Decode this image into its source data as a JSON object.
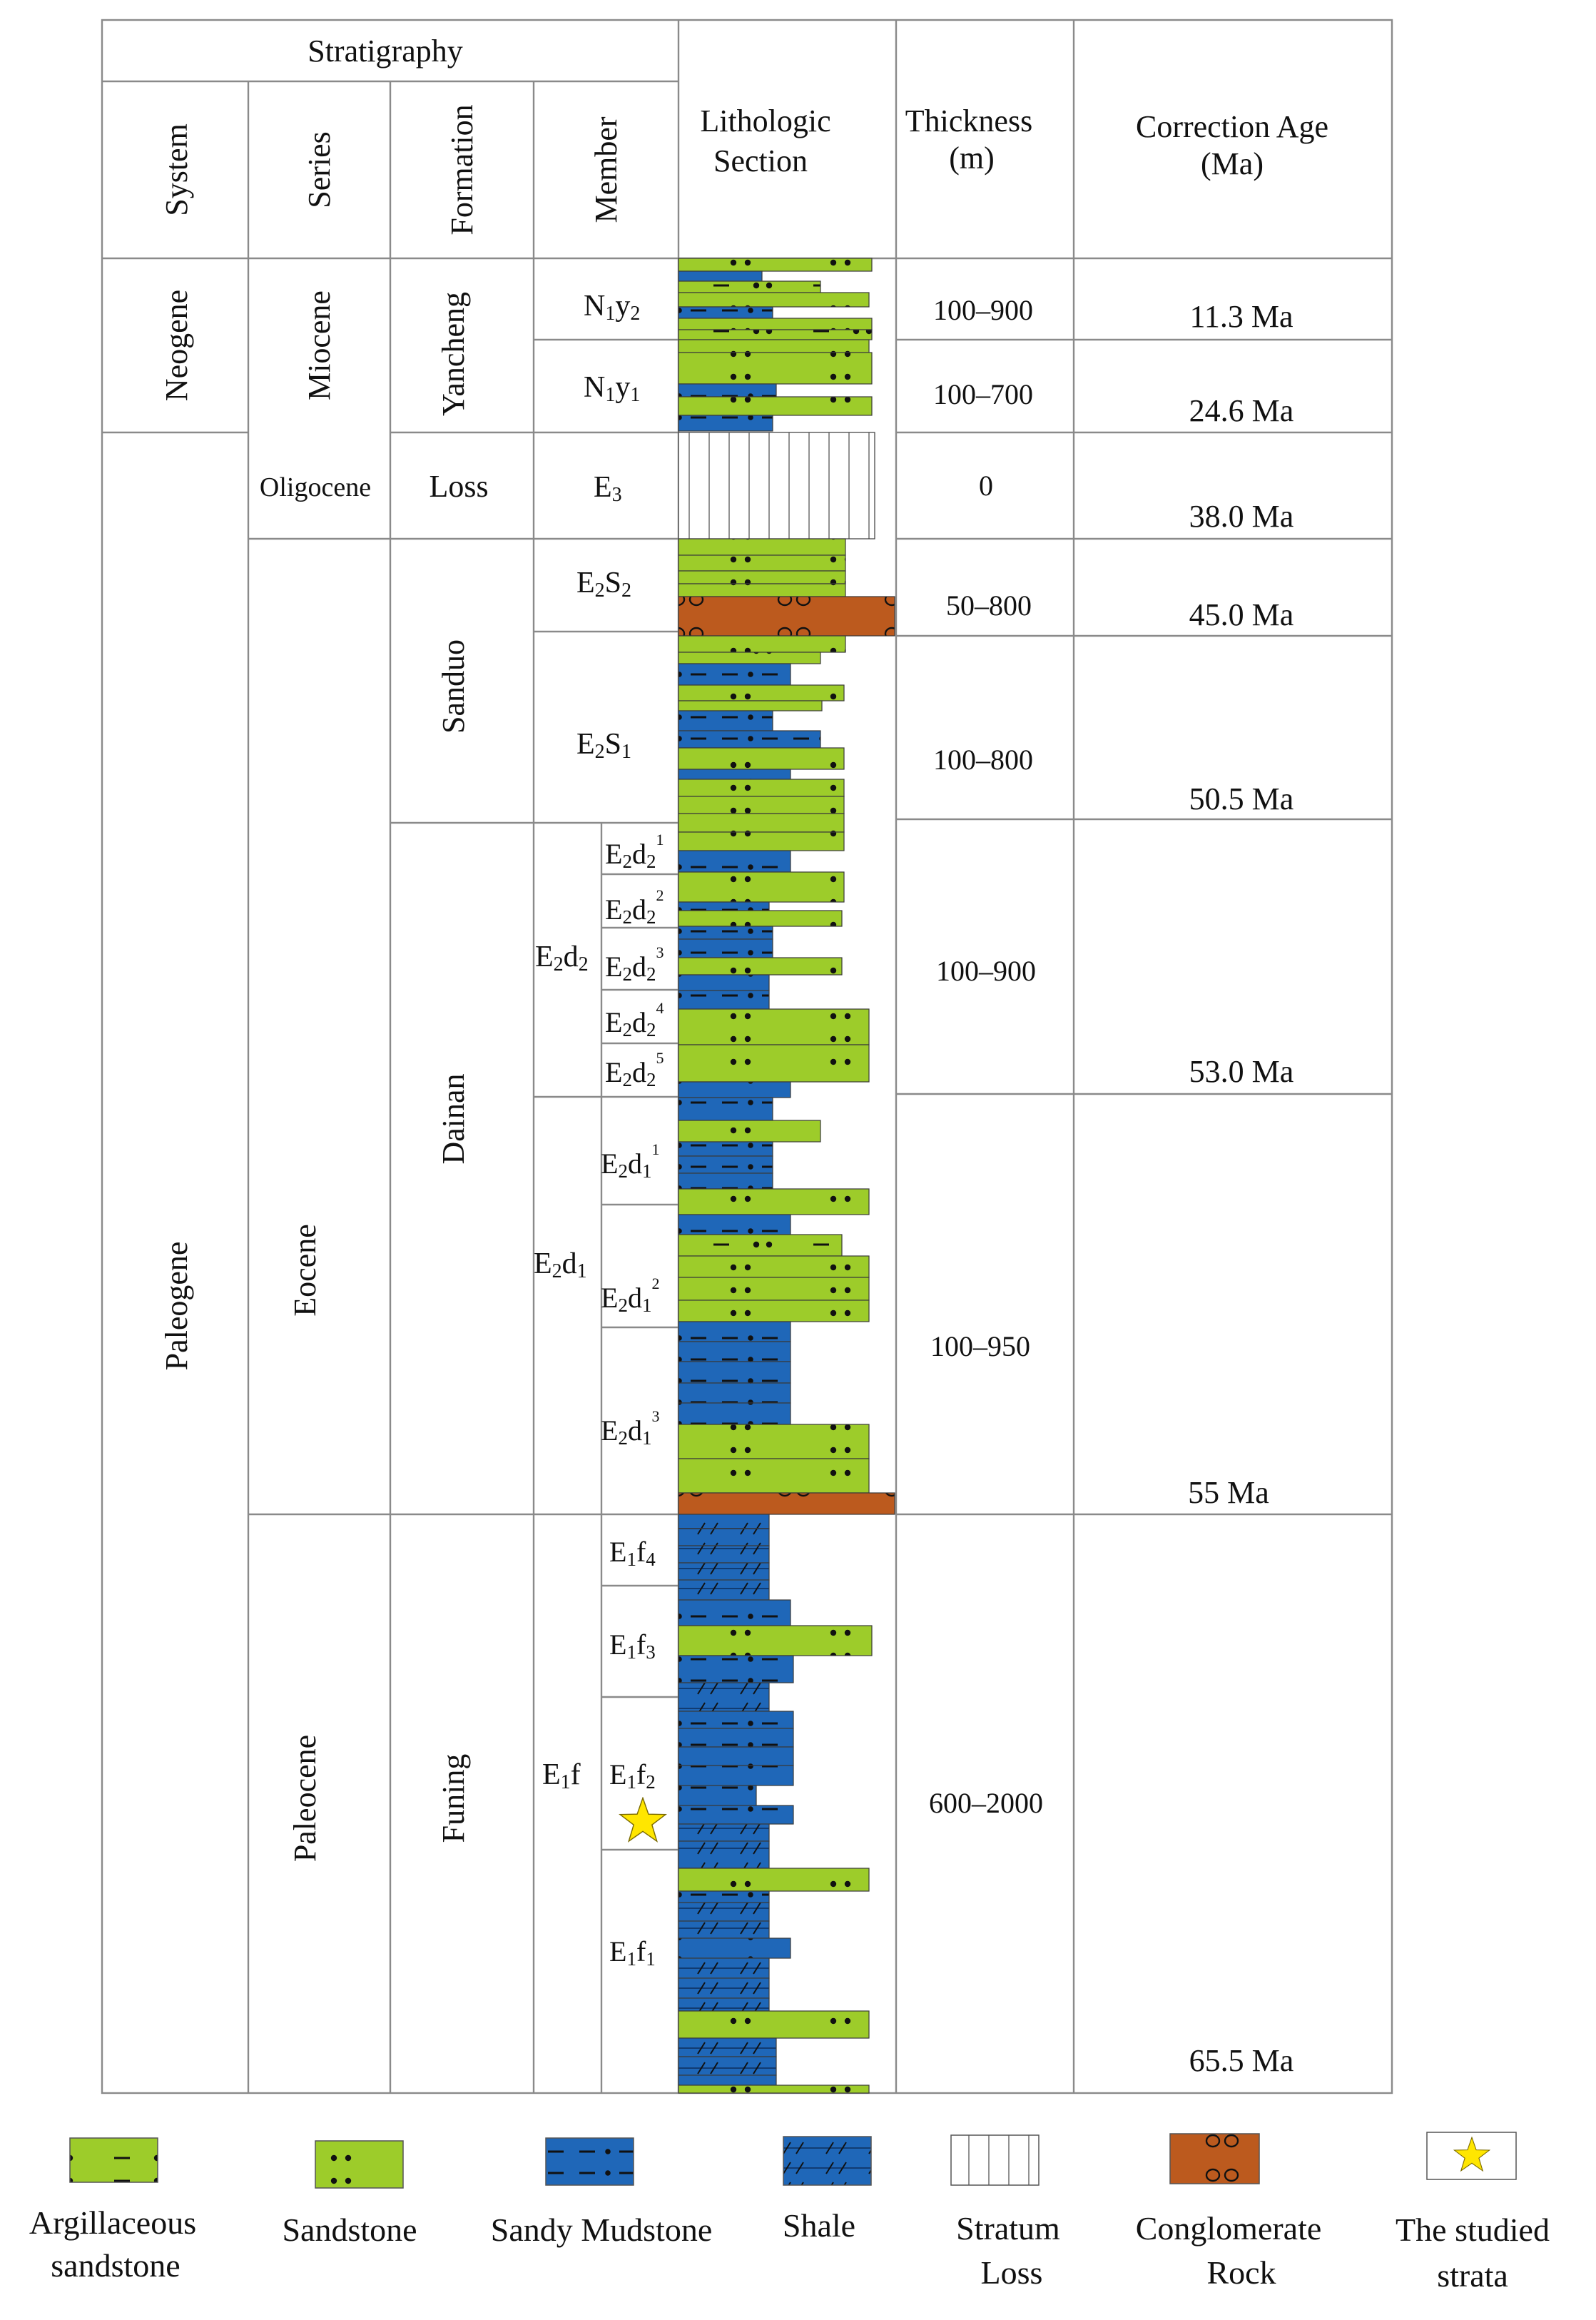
{
  "header": {
    "stratigraphy": "Stratigraphy",
    "system": "System",
    "series": "Series",
    "formation": "Formation",
    "member": "Member",
    "lithologic_section": [
      "Lithologic",
      "Section"
    ],
    "thickness": [
      "Thickness",
      "(m)"
    ],
    "correction_age": [
      "Correction Age",
      "(Ma)"
    ]
  },
  "systems": [
    "Neogene",
    "Paleogene"
  ],
  "series": [
    "Miocene",
    "Oligocene",
    "Eocene",
    "Paleocene"
  ],
  "formations": [
    "Yancheng",
    "Loss",
    "Sanduo",
    "Dainan",
    "Funing"
  ],
  "members": {
    "N1y2": {
      "base": "N",
      "sub1": "1",
      "mid": "y",
      "sub2": "2"
    },
    "N1y1": {
      "base": "N",
      "sub1": "1",
      "mid": "y",
      "sub2": "1"
    },
    "E3": {
      "base": "E",
      "sub1": "3"
    },
    "E2S2": {
      "base": "E",
      "sub1": "2",
      "mid": "S",
      "sub2": "2"
    },
    "E2S1": {
      "base": "E",
      "sub1": "2",
      "mid": "S",
      "sub2": "1"
    },
    "E2d2": {
      "base": "E",
      "sub1": "2",
      "mid": "d",
      "sub2": "2"
    },
    "E2d1": {
      "base": "E",
      "sub1": "2",
      "mid": "d",
      "sub2": "1"
    },
    "E1f": {
      "base": "E",
      "sub1": "1",
      "mid": "f"
    }
  },
  "submembers": [
    {
      "base": "E",
      "sub1": "2",
      "mid": "d",
      "sub2": "2",
      "sup": "1"
    },
    {
      "base": "E",
      "sub1": "2",
      "mid": "d",
      "sub2": "2",
      "sup": "2"
    },
    {
      "base": "E",
      "sub1": "2",
      "mid": "d",
      "sub2": "2",
      "sup": "3"
    },
    {
      "base": "E",
      "sub1": "2",
      "mid": "d",
      "sub2": "2",
      "sup": "4"
    },
    {
      "base": "E",
      "sub1": "2",
      "mid": "d",
      "sub2": "2",
      "sup": "5"
    },
    {
      "base": "E",
      "sub1": "2",
      "mid": "d",
      "sub2": "1",
      "sup": "1"
    },
    {
      "base": "E",
      "sub1": "2",
      "mid": "d",
      "sub2": "1",
      "sup": "2"
    },
    {
      "base": "E",
      "sub1": "2",
      "mid": "d",
      "sub2": "1",
      "sup": "3"
    },
    {
      "base": "E",
      "sub1": "1",
      "mid": "f",
      "sub2": "4"
    },
    {
      "base": "E",
      "sub1": "1",
      "mid": "f",
      "sub2": "3"
    },
    {
      "base": "E",
      "sub1": "1",
      "mid": "f",
      "sub2": "2"
    },
    {
      "base": "E",
      "sub1": "1",
      "mid": "f",
      "sub2": "1"
    }
  ],
  "thickness": [
    "100–900",
    "100–700",
    "0",
    "50–800",
    "100–800",
    "100–900",
    "100–950",
    "600–2000"
  ],
  "ages": [
    "11.3 Ma",
    "24.6 Ma",
    "38.0 Ma",
    "45.0 Ma",
    "50.5 Ma",
    "53.0 Ma",
    "55 Ma",
    "65.5 Ma"
  ],
  "legend": [
    {
      "key": "argillaceous-sandstone",
      "lines": [
        "Argillaceous",
        "sandstone"
      ]
    },
    {
      "key": "sandstone",
      "lines": [
        "Sandstone"
      ]
    },
    {
      "key": "sandy-mudstone",
      "lines": [
        "Sandy Mudstone"
      ]
    },
    {
      "key": "shale",
      "lines": [
        "Shale"
      ]
    },
    {
      "key": "stratum-loss",
      "lines": [
        "Stratum",
        "Loss"
      ]
    },
    {
      "key": "conglomerate-rock",
      "lines": [
        "Conglomerate",
        "Rock"
      ]
    },
    {
      "key": "studied-strata",
      "lines": [
        "The studied",
        "strata"
      ]
    }
  ],
  "marker": {
    "studied_strata_icon": "star-icon",
    "located_in": "E1f2"
  },
  "colors": {
    "sandstone": "#9dcc2a",
    "mudstone": "#1f67b8",
    "conglomerate": "#bc5a1e",
    "loss": "#ffffff",
    "star": "#ffe600",
    "grid": "#8a8a8a"
  }
}
